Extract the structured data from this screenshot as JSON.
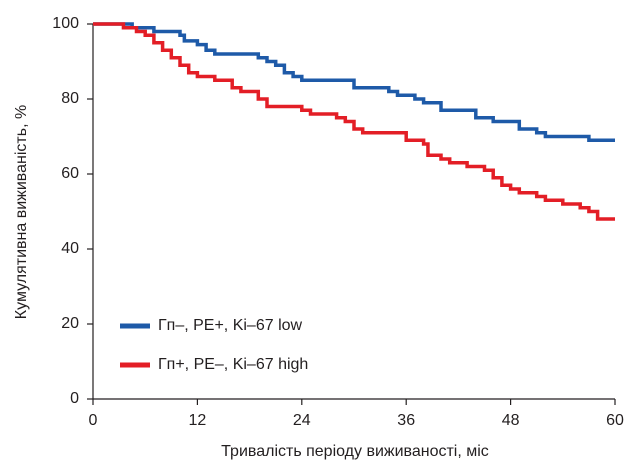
{
  "chart_data": {
    "type": "line",
    "step": "post",
    "x_label": "Тривалість періоду виживаності, міс",
    "y_label": "Кумулятивна виживаність, %",
    "xlim": [
      0,
      60
    ],
    "xticks": [
      0,
      12,
      24,
      36,
      48,
      60
    ],
    "ylim": [
      0,
      100
    ],
    "yticks": [
      0,
      20,
      40,
      60,
      80,
      100
    ],
    "legend": "lower left",
    "series": [
      {
        "name": "Гп–, РЕ+, Ki–67 low",
        "color": "#1e5aa8",
        "x": [
          0,
          4.5,
          7,
          10,
          10.5,
          12,
          13,
          14,
          19,
          20,
          21,
          22,
          23,
          24,
          30,
          34,
          35,
          37,
          38,
          40,
          44,
          46,
          49,
          51,
          52,
          57,
          60
        ],
        "values": [
          100,
          99,
          98,
          97,
          95.5,
          94.5,
          93,
          92,
          91,
          90,
          89,
          87,
          86,
          85,
          83,
          82,
          81,
          80,
          79,
          77,
          75,
          74,
          72,
          71,
          70,
          69,
          69
        ]
      },
      {
        "name": "Гп+, РЕ–, Ki–67 high",
        "color": "#e31e26",
        "x": [
          0,
          3.5,
          5,
          6,
          7,
          8,
          9,
          10,
          11,
          12,
          14,
          16,
          17,
          19,
          20,
          24,
          25,
          28,
          29,
          30,
          31,
          36,
          38,
          38.5,
          40,
          41,
          43,
          45,
          46,
          47,
          48,
          49,
          51,
          52,
          54,
          56,
          57,
          58,
          60
        ],
        "values": [
          100,
          99,
          98,
          97,
          95,
          93,
          91,
          89,
          87,
          86,
          85,
          83,
          82,
          80,
          78,
          77,
          76,
          75,
          74,
          72,
          71,
          69,
          68,
          65,
          64,
          63,
          62,
          61,
          59,
          57,
          56,
          55,
          54,
          53,
          52,
          51,
          50,
          48,
          48
        ]
      }
    ]
  }
}
